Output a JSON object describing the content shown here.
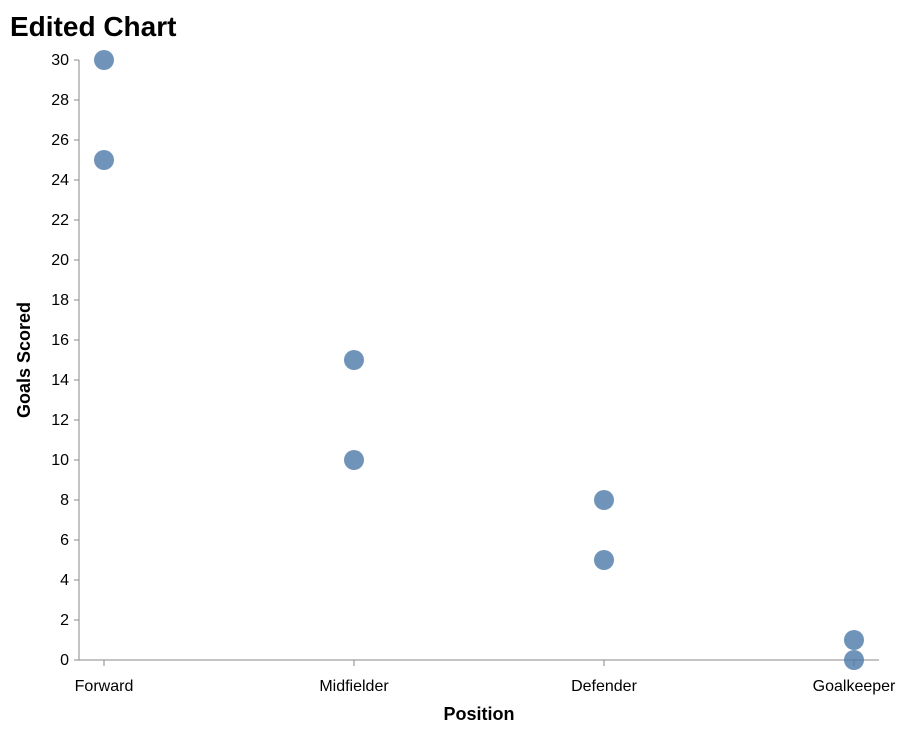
{
  "chart_data": {
    "type": "scatter",
    "title": "Edited Chart",
    "xlabel": "Position",
    "ylabel": "Goals Scored",
    "categories": [
      "Forward",
      "Midfielder",
      "Defender",
      "Goalkeeper"
    ],
    "points": [
      {
        "x": "Forward",
        "y": 30
      },
      {
        "x": "Forward",
        "y": 25
      },
      {
        "x": "Midfielder",
        "y": 15
      },
      {
        "x": "Midfielder",
        "y": 10
      },
      {
        "x": "Defender",
        "y": 8
      },
      {
        "x": "Defender",
        "y": 5
      },
      {
        "x": "Goalkeeper",
        "y": 1
      },
      {
        "x": "Goalkeeper",
        "y": 0
      }
    ],
    "ylim": [
      0,
      30
    ],
    "yticks": [
      0,
      2,
      4,
      6,
      8,
      10,
      12,
      14,
      16,
      18,
      20,
      22,
      24,
      26,
      28,
      30
    ],
    "grid": false,
    "legend": "none",
    "point_color": "#4c78a8"
  }
}
